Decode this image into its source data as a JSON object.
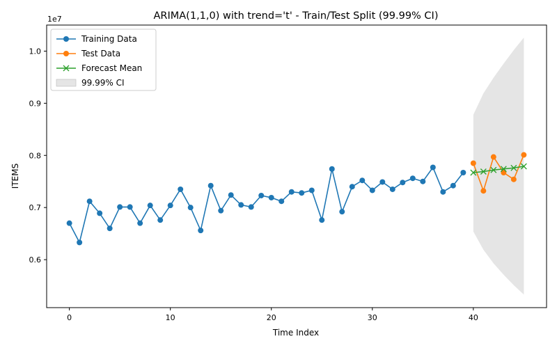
{
  "chart_data": {
    "type": "line",
    "title": "ARIMA(1,1,0) with trend='t' - Train/Test Split (99.99% CI)",
    "xlabel": "Time Index",
    "ylabel": "ITEMS",
    "y_offset_label": "1e7",
    "xlim": [
      -2.25,
      47.25
    ],
    "ylim": [
      5.08,
      10.5
    ],
    "y_units_note": "y values are in units of 1e7 / 10 (i.e. millions shown as 0.x of 1e7)",
    "xticks": [
      0,
      10,
      20,
      30,
      40
    ],
    "xtick_labels": [
      "0",
      "10",
      "20",
      "30",
      "40"
    ],
    "yticks": [
      6.0,
      7.0,
      8.0,
      9.0,
      10.0
    ],
    "ytick_labels": [
      "0.6",
      "0.7",
      "0.8",
      "0.9",
      "1.0"
    ],
    "grid": false,
    "legend_position": "top-left",
    "series": [
      {
        "name": "Training Data",
        "color": "#1f77b4",
        "marker": "circle",
        "x": [
          0,
          1,
          2,
          3,
          4,
          5,
          6,
          7,
          8,
          9,
          10,
          11,
          12,
          13,
          14,
          15,
          16,
          17,
          18,
          19,
          20,
          21,
          22,
          23,
          24,
          25,
          26,
          27,
          28,
          29,
          30,
          31,
          32,
          33,
          34,
          35,
          36,
          37,
          38,
          39
        ],
        "y": [
          6.7,
          6.33,
          7.12,
          6.89,
          6.6,
          7.01,
          7.01,
          6.7,
          7.04,
          6.76,
          7.04,
          7.35,
          7.0,
          6.56,
          7.42,
          6.94,
          7.24,
          7.05,
          7.01,
          7.23,
          7.19,
          7.12,
          7.3,
          7.28,
          7.33,
          6.76,
          7.74,
          6.92,
          7.4,
          7.52,
          7.33,
          7.49,
          7.35,
          7.48,
          7.56,
          7.5,
          7.77,
          7.3,
          7.42,
          7.67
        ]
      },
      {
        "name": "Test Data",
        "color": "#ff7f0e",
        "marker": "circle",
        "x": [
          40,
          41,
          42,
          43,
          44,
          45
        ],
        "y": [
          7.85,
          7.32,
          7.97,
          7.67,
          7.54,
          8.01
        ]
      },
      {
        "name": "Forecast Mean",
        "color": "#2ca02c",
        "marker": "x",
        "x": [
          40,
          41,
          42,
          43,
          44,
          45
        ],
        "y": [
          7.67,
          7.69,
          7.72,
          7.74,
          7.76,
          7.79
        ]
      }
    ],
    "confidence_interval": {
      "name": "99.99% CI",
      "color": "#d3d3d3",
      "x": [
        40,
        41,
        42,
        43,
        44,
        45
      ],
      "lower": [
        6.54,
        6.19,
        5.93,
        5.71,
        5.51,
        5.33
      ],
      "upper": [
        8.78,
        9.19,
        9.49,
        9.76,
        10.02,
        10.26
      ]
    }
  }
}
